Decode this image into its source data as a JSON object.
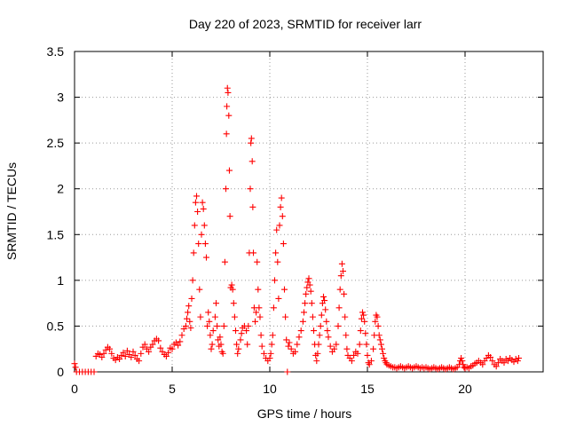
{
  "chart_data": {
    "type": "scatter",
    "title": "Day 220 of 2023, SRMTID for receiver larr",
    "xlabel": "GPS time / hours",
    "ylabel": "SRMTID / TECUs",
    "xlim": [
      0,
      24
    ],
    "ylim": [
      0,
      3.5
    ],
    "xticks": [
      0,
      5,
      10,
      15,
      20
    ],
    "xtick_labels": [
      "0",
      "5",
      "10",
      "15",
      "20"
    ],
    "yticks": [
      0,
      0.5,
      1,
      1.5,
      2,
      2.5,
      3,
      3.5
    ],
    "ytick_labels": [
      "0",
      "0.5",
      "1",
      "1.5",
      "2",
      "2.5",
      "3",
      "3.5"
    ],
    "grid": true,
    "marker": "+",
    "color": "#ff0000",
    "series": [
      {
        "name": "SRMTID",
        "points": [
          [
            0.0,
            0.09
          ],
          [
            0.05,
            0.05
          ],
          [
            0.1,
            0.0
          ],
          [
            0.25,
            0.0
          ],
          [
            0.4,
            0.0
          ],
          [
            0.55,
            0.0
          ],
          [
            0.7,
            0.0
          ],
          [
            0.85,
            0.0
          ],
          [
            1.0,
            0.0
          ],
          [
            1.1,
            0.17
          ],
          [
            1.2,
            0.2
          ],
          [
            1.3,
            0.19
          ],
          [
            1.4,
            0.16
          ],
          [
            1.5,
            0.2
          ],
          [
            1.6,
            0.24
          ],
          [
            1.7,
            0.27
          ],
          [
            1.8,
            0.25
          ],
          [
            1.9,
            0.2
          ],
          [
            2.0,
            0.15
          ],
          [
            2.1,
            0.13
          ],
          [
            2.2,
            0.16
          ],
          [
            2.3,
            0.14
          ],
          [
            2.4,
            0.18
          ],
          [
            2.5,
            0.21
          ],
          [
            2.6,
            0.17
          ],
          [
            2.7,
            0.23
          ],
          [
            2.8,
            0.19
          ],
          [
            2.9,
            0.16
          ],
          [
            3.0,
            0.22
          ],
          [
            3.1,
            0.18
          ],
          [
            3.2,
            0.14
          ],
          [
            3.3,
            0.12
          ],
          [
            3.4,
            0.2
          ],
          [
            3.5,
            0.27
          ],
          [
            3.6,
            0.3
          ],
          [
            3.7,
            0.25
          ],
          [
            3.8,
            0.22
          ],
          [
            3.9,
            0.27
          ],
          [
            4.0,
            0.3
          ],
          [
            4.1,
            0.34
          ],
          [
            4.2,
            0.36
          ],
          [
            4.3,
            0.34
          ],
          [
            4.4,
            0.26
          ],
          [
            4.5,
            0.22
          ],
          [
            4.6,
            0.19
          ],
          [
            4.7,
            0.17
          ],
          [
            4.8,
            0.21
          ],
          [
            4.9,
            0.26
          ],
          [
            5.0,
            0.25
          ],
          [
            5.1,
            0.3
          ],
          [
            5.2,
            0.32
          ],
          [
            5.3,
            0.29
          ],
          [
            5.4,
            0.33
          ],
          [
            5.5,
            0.4
          ],
          [
            5.6,
            0.47
          ],
          [
            5.7,
            0.5
          ],
          [
            5.75,
            0.58
          ],
          [
            5.8,
            0.65
          ],
          [
            5.85,
            0.72
          ],
          [
            5.9,
            0.55
          ],
          [
            5.95,
            0.48
          ],
          [
            6.0,
            0.8
          ],
          [
            6.05,
            1.0
          ],
          [
            6.1,
            1.3
          ],
          [
            6.15,
            1.6
          ],
          [
            6.2,
            1.85
          ],
          [
            6.25,
            1.92
          ],
          [
            6.3,
            1.75
          ],
          [
            6.35,
            1.4
          ],
          [
            6.4,
            0.9
          ],
          [
            6.45,
            0.6
          ],
          [
            6.5,
            1.5
          ],
          [
            6.55,
            1.85
          ],
          [
            6.6,
            1.78
          ],
          [
            6.65,
            1.6
          ],
          [
            6.7,
            1.4
          ],
          [
            6.75,
            1.25
          ],
          [
            6.8,
            0.5
          ],
          [
            6.85,
            0.65
          ],
          [
            6.9,
            0.55
          ],
          [
            6.95,
            0.4
          ],
          [
            7.0,
            0.25
          ],
          [
            7.05,
            0.3
          ],
          [
            7.1,
            0.45
          ],
          [
            7.2,
            0.6
          ],
          [
            7.25,
            0.75
          ],
          [
            7.3,
            0.5
          ],
          [
            7.35,
            0.35
          ],
          [
            7.4,
            0.28
          ],
          [
            7.45,
            0.38
          ],
          [
            7.5,
            0.3
          ],
          [
            7.55,
            0.22
          ],
          [
            7.6,
            0.2
          ],
          [
            7.65,
            0.5
          ],
          [
            7.7,
            1.2
          ],
          [
            7.75,
            2.0
          ],
          [
            7.78,
            2.6
          ],
          [
            7.8,
            2.9
          ],
          [
            7.83,
            3.1
          ],
          [
            7.86,
            3.05
          ],
          [
            7.9,
            2.8
          ],
          [
            7.93,
            2.2
          ],
          [
            7.96,
            1.7
          ],
          [
            8.0,
            0.92
          ],
          [
            8.05,
            0.95
          ],
          [
            8.1,
            0.9
          ],
          [
            8.15,
            0.75
          ],
          [
            8.2,
            0.6
          ],
          [
            8.25,
            0.45
          ],
          [
            8.3,
            0.3
          ],
          [
            8.35,
            0.2
          ],
          [
            8.4,
            0.25
          ],
          [
            8.5,
            0.35
          ],
          [
            8.55,
            0.42
          ],
          [
            8.6,
            0.48
          ],
          [
            8.7,
            0.5
          ],
          [
            8.8,
            0.45
          ],
          [
            8.85,
            0.3
          ],
          [
            8.9,
            0.5
          ],
          [
            8.95,
            1.3
          ],
          [
            9.0,
            2.0
          ],
          [
            9.03,
            2.5
          ],
          [
            9.06,
            2.55
          ],
          [
            9.1,
            2.3
          ],
          [
            9.13,
            1.8
          ],
          [
            9.16,
            1.3
          ],
          [
            9.2,
            0.7
          ],
          [
            9.25,
            0.55
          ],
          [
            9.3,
            0.65
          ],
          [
            9.35,
            1.2
          ],
          [
            9.4,
            0.9
          ],
          [
            9.45,
            0.7
          ],
          [
            9.5,
            0.6
          ],
          [
            9.55,
            0.4
          ],
          [
            9.6,
            0.28
          ],
          [
            9.7,
            0.2
          ],
          [
            9.8,
            0.15
          ],
          [
            9.9,
            0.12
          ],
          [
            10.0,
            0.15
          ],
          [
            10.05,
            0.2
          ],
          [
            10.1,
            0.3
          ],
          [
            10.15,
            0.4
          ],
          [
            10.2,
            0.7
          ],
          [
            10.25,
            1.0
          ],
          [
            10.3,
            1.3
          ],
          [
            10.35,
            1.55
          ],
          [
            10.4,
            1.2
          ],
          [
            10.45,
            0.8
          ],
          [
            10.5,
            1.6
          ],
          [
            10.55,
            1.8
          ],
          [
            10.6,
            1.9
          ],
          [
            10.65,
            1.7
          ],
          [
            10.7,
            1.4
          ],
          [
            10.75,
            0.9
          ],
          [
            10.8,
            0.6
          ],
          [
            10.85,
            0.35
          ],
          [
            10.9,
            0.0
          ],
          [
            10.95,
            0.28
          ],
          [
            11.0,
            0.32
          ],
          [
            11.1,
            0.25
          ],
          [
            11.2,
            0.2
          ],
          [
            11.3,
            0.22
          ],
          [
            11.4,
            0.3
          ],
          [
            11.5,
            0.38
          ],
          [
            11.6,
            0.45
          ],
          [
            11.7,
            0.55
          ],
          [
            11.75,
            0.65
          ],
          [
            11.8,
            0.75
          ],
          [
            11.85,
            0.85
          ],
          [
            11.9,
            0.92
          ],
          [
            11.95,
            0.98
          ],
          [
            12.0,
            1.02
          ],
          [
            12.05,
            0.95
          ],
          [
            12.1,
            0.88
          ],
          [
            12.15,
            0.75
          ],
          [
            12.2,
            0.6
          ],
          [
            12.25,
            0.45
          ],
          [
            12.3,
            0.3
          ],
          [
            12.35,
            0.18
          ],
          [
            12.4,
            0.12
          ],
          [
            12.45,
            0.2
          ],
          [
            12.5,
            0.3
          ],
          [
            12.55,
            0.4
          ],
          [
            12.6,
            0.5
          ],
          [
            12.65,
            0.62
          ],
          [
            12.7,
            0.75
          ],
          [
            12.75,
            0.82
          ],
          [
            12.8,
            0.78
          ],
          [
            12.85,
            0.68
          ],
          [
            12.9,
            0.55
          ],
          [
            12.95,
            0.45
          ],
          [
            13.0,
            0.38
          ],
          [
            13.1,
            0.28
          ],
          [
            13.2,
            0.22
          ],
          [
            13.3,
            0.25
          ],
          [
            13.4,
            0.3
          ],
          [
            13.5,
            0.5
          ],
          [
            13.55,
            0.7
          ],
          [
            13.6,
            0.9
          ],
          [
            13.65,
            1.05
          ],
          [
            13.7,
            1.18
          ],
          [
            13.75,
            1.1
          ],
          [
            13.8,
            0.85
          ],
          [
            13.85,
            0.6
          ],
          [
            13.9,
            0.4
          ],
          [
            13.95,
            0.25
          ],
          [
            14.0,
            0.18
          ],
          [
            14.1,
            0.15
          ],
          [
            14.2,
            0.12
          ],
          [
            14.3,
            0.18
          ],
          [
            14.4,
            0.22
          ],
          [
            14.5,
            0.2
          ],
          [
            14.6,
            0.3
          ],
          [
            14.65,
            0.45
          ],
          [
            14.7,
            0.58
          ],
          [
            14.75,
            0.65
          ],
          [
            14.8,
            0.62
          ],
          [
            14.85,
            0.55
          ],
          [
            14.9,
            0.42
          ],
          [
            14.95,
            0.3
          ],
          [
            15.0,
            0.18
          ],
          [
            15.05,
            0.1
          ],
          [
            15.1,
            0.08
          ],
          [
            15.2,
            0.12
          ],
          [
            15.3,
            0.25
          ],
          [
            15.35,
            0.4
          ],
          [
            15.4,
            0.55
          ],
          [
            15.45,
            0.62
          ],
          [
            15.5,
            0.6
          ],
          [
            15.55,
            0.5
          ],
          [
            15.6,
            0.4
          ],
          [
            15.65,
            0.35
          ],
          [
            15.7,
            0.3
          ],
          [
            15.75,
            0.25
          ],
          [
            15.8,
            0.2
          ],
          [
            15.85,
            0.15
          ],
          [
            15.9,
            0.12
          ],
          [
            15.95,
            0.1
          ],
          [
            16.0,
            0.08
          ],
          [
            16.1,
            0.07
          ],
          [
            16.2,
            0.06
          ],
          [
            16.3,
            0.05
          ],
          [
            16.4,
            0.05
          ],
          [
            16.5,
            0.04
          ],
          [
            16.6,
            0.05
          ],
          [
            16.7,
            0.06
          ],
          [
            16.8,
            0.05
          ],
          [
            16.9,
            0.04
          ],
          [
            17.0,
            0.05
          ],
          [
            17.1,
            0.06
          ],
          [
            17.2,
            0.05
          ],
          [
            17.3,
            0.04
          ],
          [
            17.4,
            0.05
          ],
          [
            17.5,
            0.06
          ],
          [
            17.6,
            0.05
          ],
          [
            17.7,
            0.04
          ],
          [
            17.8,
            0.05
          ],
          [
            17.9,
            0.04
          ],
          [
            18.0,
            0.05
          ],
          [
            18.1,
            0.04
          ],
          [
            18.2,
            0.03
          ],
          [
            18.3,
            0.04
          ],
          [
            18.4,
            0.05
          ],
          [
            18.5,
            0.04
          ],
          [
            18.6,
            0.03
          ],
          [
            18.7,
            0.04
          ],
          [
            18.8,
            0.05
          ],
          [
            18.9,
            0.04
          ],
          [
            19.0,
            0.03
          ],
          [
            19.1,
            0.04
          ],
          [
            19.2,
            0.05
          ],
          [
            19.3,
            0.04
          ],
          [
            19.4,
            0.03
          ],
          [
            19.5,
            0.04
          ],
          [
            19.6,
            0.05
          ],
          [
            19.7,
            0.08
          ],
          [
            19.75,
            0.12
          ],
          [
            19.8,
            0.15
          ],
          [
            19.85,
            0.12
          ],
          [
            19.9,
            0.08
          ],
          [
            19.95,
            0.05
          ],
          [
            20.0,
            0.04
          ],
          [
            20.1,
            0.05
          ],
          [
            20.2,
            0.04
          ],
          [
            20.3,
            0.06
          ],
          [
            20.4,
            0.07
          ],
          [
            20.5,
            0.09
          ],
          [
            20.6,
            0.1
          ],
          [
            20.7,
            0.12
          ],
          [
            20.8,
            0.1
          ],
          [
            20.9,
            0.08
          ],
          [
            21.0,
            0.12
          ],
          [
            21.1,
            0.15
          ],
          [
            21.2,
            0.18
          ],
          [
            21.3,
            0.16
          ],
          [
            21.4,
            0.12
          ],
          [
            21.5,
            0.08
          ],
          [
            21.6,
            0.06
          ],
          [
            21.7,
            0.1
          ],
          [
            21.8,
            0.14
          ],
          [
            21.9,
            0.12
          ],
          [
            22.0,
            0.1
          ],
          [
            22.1,
            0.14
          ],
          [
            22.2,
            0.12
          ],
          [
            22.3,
            0.15
          ],
          [
            22.4,
            0.13
          ],
          [
            22.5,
            0.11
          ],
          [
            22.6,
            0.14
          ],
          [
            22.7,
            0.12
          ],
          [
            22.75,
            0.15
          ]
        ]
      }
    ]
  }
}
